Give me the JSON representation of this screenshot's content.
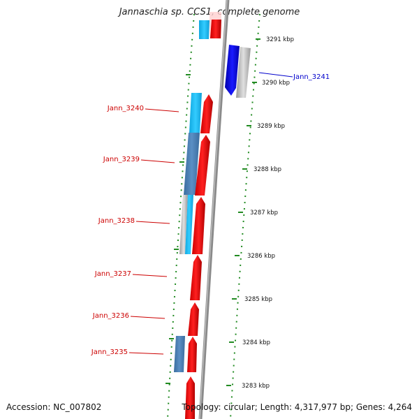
{
  "title": "Jannaschia sp. CCS1, complete genome",
  "footer": {
    "accession": "Accession: NC_007802",
    "topology": "Topology: circular; Length: 4,317,977 bp; Genes: 4,264"
  },
  "colors": {
    "forward_strand": "#ff0000",
    "reverse_strand": "#0000dd",
    "cds_light_blue": "#22ccff",
    "cds_steel_blue": "#4a7fb5",
    "other_gray": "#bbbbbb",
    "tick_green": "#228b22",
    "backbone_gray": "#888888"
  },
  "scale_labels": [
    {
      "kbp": 3291,
      "label": "3291 kbp"
    },
    {
      "kbp": 3290,
      "label": "3290 kbp"
    },
    {
      "kbp": 3289,
      "label": "3289 kbp"
    },
    {
      "kbp": 3288,
      "label": "3288 kbp"
    },
    {
      "kbp": 3287,
      "label": "3287 kbp"
    },
    {
      "kbp": 3286,
      "label": "3286 kbp"
    },
    {
      "kbp": 3285,
      "label": "3285 kbp"
    },
    {
      "kbp": 3284,
      "label": "3284 kbp"
    },
    {
      "kbp": 3283,
      "label": "3283 kbp"
    }
  ],
  "gene_labels": [
    {
      "name": "Jann_3241",
      "side": "right",
      "strand": "reverse"
    },
    {
      "name": "Jann_3240",
      "side": "left",
      "strand": "forward"
    },
    {
      "name": "Jann_3239",
      "side": "left",
      "strand": "forward"
    },
    {
      "name": "Jann_3238",
      "side": "left",
      "strand": "forward"
    },
    {
      "name": "Jann_3237",
      "side": "left",
      "strand": "forward"
    },
    {
      "name": "Jann_3236",
      "side": "left",
      "strand": "forward"
    },
    {
      "name": "Jann_3235",
      "side": "left",
      "strand": "forward"
    }
  ]
}
